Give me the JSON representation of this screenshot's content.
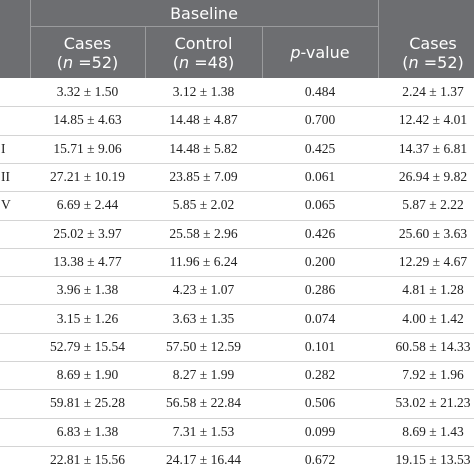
{
  "table": {
    "group_header": "Baseline",
    "columns": [
      {
        "name": "Cases",
        "n": [
          [
            "(",
            false
          ],
          [
            "n",
            true
          ],
          [
            " =52)",
            false
          ]
        ]
      },
      {
        "name": "Control",
        "n": [
          [
            "(",
            false
          ],
          [
            "n",
            true
          ],
          [
            " =48)",
            false
          ]
        ]
      },
      {
        "name": [
          [
            "p",
            true
          ],
          [
            "-value",
            false
          ]
        ]
      },
      {
        "name": "Cases",
        "n": [
          [
            "(",
            false
          ],
          [
            "n",
            true
          ],
          [
            " =52)",
            false
          ]
        ]
      }
    ],
    "rows": [
      {
        "cells": [
          "3.32 ± 1.50",
          "3.12 ± 1.38",
          "0.484",
          "2.24 ± 1.37"
        ]
      },
      {
        "cells": [
          "14.85 ± 4.63",
          "14.48 ± 4.87",
          "0.700",
          "12.42 ± 4.01"
        ]
      },
      {
        "label": "I",
        "cells": [
          "15.71 ± 9.06",
          "14.48 ± 5.82",
          "0.425",
          "14.37 ± 6.81"
        ]
      },
      {
        "label": "II",
        "cells": [
          "27.21 ± 10.19",
          "23.85 ± 7.09",
          "0.061",
          "26.94 ± 9.82"
        ]
      },
      {
        "label": "V",
        "cells": [
          "6.69 ± 2.44",
          "5.85 ± 2.02",
          "0.065",
          "5.87 ± 2.22"
        ]
      },
      {
        "cells": [
          "25.02 ± 3.97",
          "25.58 ± 2.96",
          "0.426",
          "25.60 ± 3.63"
        ]
      },
      {
        "cells": [
          "13.38 ± 4.77",
          "11.96 ± 6.24",
          "0.200",
          "12.29 ± 4.67"
        ]
      },
      {
        "cells": [
          "3.96 ± 1.38",
          "4.23 ± 1.07",
          "0.286",
          "4.81 ± 1.28"
        ]
      },
      {
        "cells": [
          "3.15 ± 1.26",
          "3.63 ± 1.35",
          "0.074",
          "4.00 ± 1.42"
        ]
      },
      {
        "cells": [
          "52.79 ± 15.54",
          "57.50 ± 12.59",
          "0.101",
          "60.58 ± 14.33"
        ]
      },
      {
        "cells": [
          "8.69 ± 1.90",
          "8.27 ± 1.99",
          "0.282",
          "7.92 ± 1.96"
        ]
      },
      {
        "cells": [
          "59.81 ± 25.28",
          "56.58 ± 22.84",
          "0.506",
          "53.02 ± 21.23"
        ]
      },
      {
        "cells": [
          "6.83 ± 1.38",
          "7.31 ± 1.53",
          "0.099",
          "8.69 ± 1.43"
        ]
      },
      {
        "cells": [
          "22.81 ± 15.56",
          "24.17 ± 16.44",
          "0.672",
          "19.15 ± 13.53"
        ]
      }
    ]
  }
}
